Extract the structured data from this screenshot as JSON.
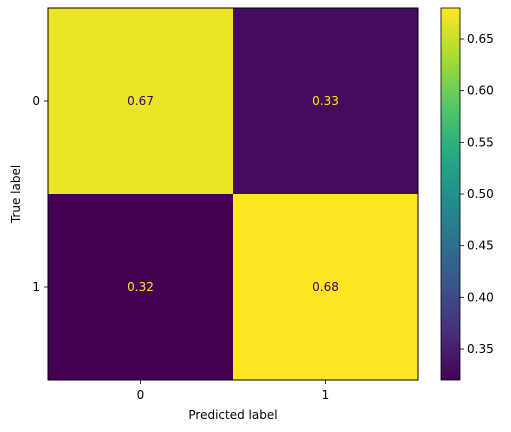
{
  "chart_data": {
    "type": "heatmap",
    "title": "",
    "xlabel": "Predicted label",
    "ylabel": "True label",
    "x_categories": [
      "0",
      "1"
    ],
    "y_categories": [
      "0",
      "1"
    ],
    "values": [
      [
        0.67,
        0.33
      ],
      [
        0.32,
        0.68
      ]
    ],
    "value_labels": [
      [
        "0.67",
        "0.33"
      ],
      [
        "0.32",
        "0.68"
      ]
    ],
    "colormap": "viridis",
    "color_range": [
      0.32,
      0.68
    ],
    "colorbar_ticks": [
      "0.35",
      "0.40",
      "0.45",
      "0.50",
      "0.55",
      "0.60",
      "0.65"
    ],
    "annotation_color_on_dark": "#fde725",
    "annotation_color_on_light": "#440154",
    "grid": false
  }
}
